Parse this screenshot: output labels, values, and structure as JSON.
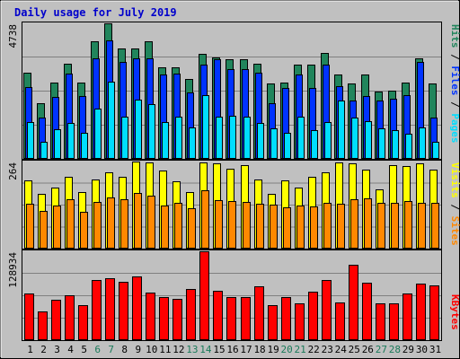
{
  "title": "Daily usage for July 2019",
  "colors": {
    "title": "#0000cc",
    "frame_bg": "#c0c0c0",
    "plot_bg": "#c0c0c0",
    "hits": "#21855c",
    "files": "#0033ff",
    "pages": "#00ddff",
    "visits": "#ffff00",
    "sites": "#ff8800",
    "kbytes": "#ff0000",
    "weekend_label": "#1a7a5a",
    "day_label": "#000000",
    "gridline": "#808080"
  },
  "panels": {
    "top": {
      "max_label": "4738",
      "legend": {
        "pages": "Pages",
        "files": "Files",
        "hits": "Hits",
        "sep": " / "
      }
    },
    "middle": {
      "max_label": "264",
      "legend": {
        "sites": "Sites",
        "visits": "Visits",
        "sep": " / "
      }
    },
    "bottom": {
      "max_label": "128934",
      "legend": {
        "kbytes": "KBytes"
      }
    }
  },
  "chart_data": {
    "type": "bar",
    "title": "Daily usage for July 2019",
    "categories": [
      "1",
      "2",
      "3",
      "4",
      "5",
      "6",
      "7",
      "8",
      "9",
      "10",
      "11",
      "12",
      "13",
      "14",
      "15",
      "16",
      "17",
      "18",
      "19",
      "20",
      "21",
      "22",
      "23",
      "24",
      "25",
      "26",
      "27",
      "28",
      "29",
      "30",
      "31"
    ],
    "weekend_days": [
      "6",
      "7",
      "13",
      "14",
      "20",
      "21",
      "27",
      "28"
    ],
    "charts": [
      {
        "panel": "top",
        "ylim": [
          0,
          4738
        ],
        "series": [
          {
            "name": "Hits",
            "values": [
              3000,
              1960,
              2670,
              3330,
              2670,
              4120,
              4740,
              3870,
              3870,
              4120,
              3200,
              3200,
              2790,
              3670,
              3550,
              3480,
              3480,
              3320,
              2640,
              2670,
              3290,
              3310,
              3710,
              2940,
              2630,
              2960,
              2360,
              2370,
              2680,
              3500,
              2640
            ]
          },
          {
            "name": "Files",
            "values": [
              2510,
              1440,
              2180,
              2990,
              2200,
              3500,
              4140,
              3390,
              3510,
              3510,
              2960,
              2970,
              2320,
              3290,
              3490,
              3130,
              3140,
              3020,
              1930,
              2490,
              2950,
              2470,
              3310,
              2530,
              2040,
              2190,
              2050,
              2110,
              2240,
              3390,
              1440
            ]
          },
          {
            "name": "Pages",
            "values": [
              1280,
              590,
              1020,
              1240,
              900,
              1760,
              2700,
              1490,
              2070,
              1920,
              1290,
              1480,
              1090,
              2220,
              1470,
              1500,
              1470,
              1250,
              1060,
              920,
              1460,
              990,
              1290,
              2050,
              1450,
              1310,
              1070,
              1010,
              880,
              1100,
              590
            ]
          }
        ]
      },
      {
        "panel": "middle",
        "ylim": [
          0,
          264
        ],
        "series": [
          {
            "name": "Visits",
            "values": [
              206,
              167,
              184,
              219,
              172,
              209,
              232,
              218,
              264,
              260,
              238,
              205,
              171,
              261,
              259,
              241,
              254,
              210,
              167,
              208,
              186,
              218,
              231,
              260,
              258,
              240,
              180,
              254,
              251,
              258,
              240
            ]
          },
          {
            "name": "Sites",
            "values": [
              137,
              115,
              131,
              151,
              111,
              142,
              154,
              151,
              169,
              160,
              131,
              138,
              122,
              178,
              146,
              143,
              142,
              136,
              133,
              125,
              130,
              128,
              138,
              137,
              151,
              152,
              139,
              140,
              143,
              138,
              140
            ]
          }
        ]
      },
      {
        "panel": "bottom",
        "ylim": [
          0,
          128934
        ],
        "series": [
          {
            "name": "KBytes",
            "values": [
              68000,
              42000,
              59000,
              65000,
              51000,
              87000,
              90000,
              85000,
              93000,
              69000,
              63000,
              60000,
              74000,
              128934,
              71000,
              63000,
              63000,
              78000,
              51000,
              63000,
              53000,
              70000,
              87000,
              55000,
              109000,
              84000,
              54000,
              54000,
              68000,
              82000,
              79000
            ]
          }
        ]
      }
    ]
  }
}
